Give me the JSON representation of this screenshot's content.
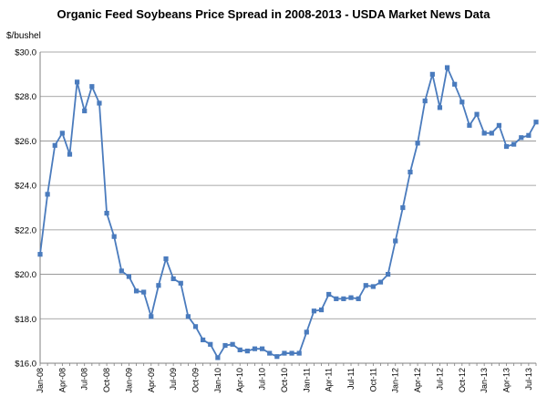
{
  "chart_data": {
    "type": "line",
    "title": "Organic Feed Soybeans Price Spread in 2008-2013 - USDA Market News Data",
    "ylabel": "$/bushel",
    "xlabel": "",
    "ylim": [
      16.0,
      30.0
    ],
    "y_ticks": [
      "$16.0",
      "$18.0",
      "$20.0",
      "$22.0",
      "$24.0",
      "$26.0",
      "$28.0",
      "$30.0"
    ],
    "y_tick_values": [
      16,
      18,
      20,
      22,
      24,
      26,
      28,
      30
    ],
    "grid": "horizontal",
    "legend": "none",
    "x_tick_labels": [
      "Jan-08",
      "Apr-08",
      "Jul-08",
      "Oct-08",
      "Jan-09",
      "Apr-09",
      "Jul-09",
      "Oct-09",
      "Jan-10",
      "Apr-10",
      "Jul-10",
      "Oct-10",
      "Jan-11",
      "Apr-11",
      "Jul-11",
      "Oct-11",
      "Jan-12",
      "Apr-12",
      "Jul-12",
      "Oct-12",
      "Jan-13",
      "Apr-13",
      "Jul-13"
    ],
    "series": [
      {
        "color": "#4a7bbd",
        "marker": "square",
        "x": [
          "Jan-08",
          "Feb-08",
          "Mar-08",
          "Apr-08",
          "May-08",
          "Jun-08",
          "Jul-08",
          "Aug-08",
          "Sep-08",
          "Oct-08",
          "Nov-08",
          "Dec-08",
          "Jan-09",
          "Feb-09",
          "Mar-09",
          "Apr-09",
          "May-09",
          "Jun-09",
          "Jul-09",
          "Aug-09",
          "Sep-09",
          "Oct-09",
          "Nov-09",
          "Dec-09",
          "Jan-10",
          "Feb-10",
          "Mar-10",
          "Apr-10",
          "May-10",
          "Jun-10",
          "Jul-10",
          "Aug-10",
          "Sep-10",
          "Oct-10",
          "Nov-10",
          "Dec-10",
          "Jan-11",
          "Feb-11",
          "Mar-11",
          "Apr-11",
          "May-11",
          "Jun-11",
          "Jul-11",
          "Aug-11",
          "Sep-11",
          "Oct-11",
          "Nov-11",
          "Dec-11",
          "Jan-12",
          "Feb-12",
          "Mar-12",
          "Apr-12",
          "May-12",
          "Jun-12",
          "Jul-12",
          "Aug-12",
          "Sep-12",
          "Oct-12",
          "Nov-12",
          "Dec-12",
          "Jan-13",
          "Feb-13",
          "Mar-13",
          "Apr-13",
          "May-13",
          "Jun-13",
          "Jul-13",
          "Aug-13"
        ],
        "values": [
          20.9,
          23.6,
          25.8,
          26.35,
          25.4,
          28.65,
          27.35,
          28.45,
          27.7,
          22.75,
          21.7,
          20.15,
          19.9,
          19.25,
          19.2,
          18.1,
          19.5,
          20.7,
          19.8,
          19.6,
          18.1,
          17.65,
          17.05,
          16.85,
          16.25,
          16.8,
          16.85,
          16.6,
          16.55,
          16.65,
          16.65,
          16.45,
          16.3,
          16.45,
          16.45,
          16.45,
          17.4,
          18.35,
          18.4,
          19.1,
          18.9,
          18.9,
          18.95,
          18.9,
          19.5,
          19.45,
          19.65,
          20.0,
          21.5,
          23.0,
          24.6,
          25.9,
          27.8,
          29.0,
          27.5,
          29.3,
          28.55,
          27.75,
          26.7,
          27.2,
          26.35,
          26.35,
          26.7,
          25.75,
          25.85,
          26.15,
          26.25,
          26.85
        ]
      }
    ]
  }
}
